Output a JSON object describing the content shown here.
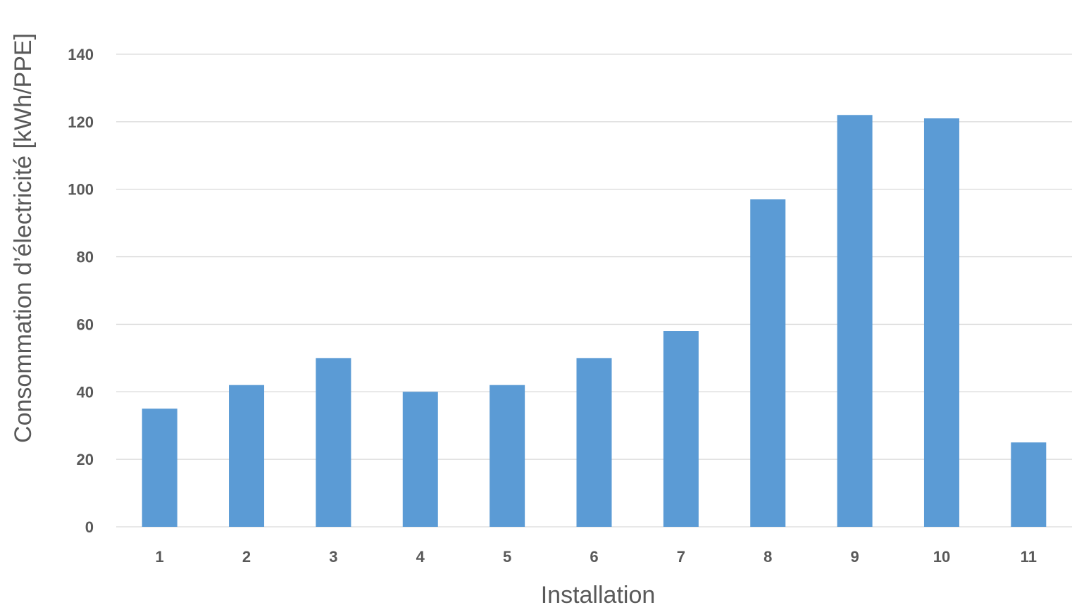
{
  "chart_data": {
    "type": "bar",
    "title": "",
    "xlabel": "Installation",
    "ylabel": "Consommation d’électricité [kWh/PPE]",
    "categories": [
      "1",
      "2",
      "3",
      "4",
      "5",
      "6",
      "7",
      "8",
      "9",
      "10",
      "11"
    ],
    "series": [
      {
        "values": [
          35,
          42,
          50,
          40,
          42,
          50,
          58,
          97,
          122,
          121,
          25
        ],
        "color": "#5b9bd5"
      }
    ],
    "ylim": [
      0,
      140
    ],
    "yticks": [
      0,
      20,
      40,
      60,
      80,
      100,
      120,
      140
    ],
    "grid": true,
    "legend": "none"
  }
}
